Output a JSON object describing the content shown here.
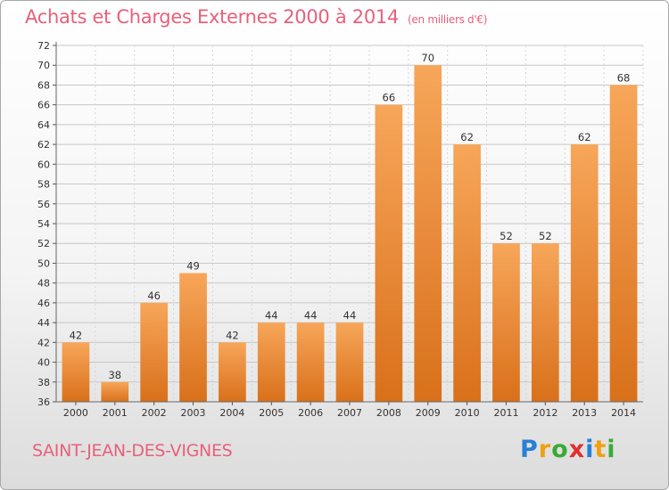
{
  "header": {
    "title": "Achats et Charges Externes 2000 à 2014",
    "unit": "(en milliers d'€)"
  },
  "footer": {
    "commune": "SAINT-JEAN-DES-VIGNES"
  },
  "logo": {
    "letters": [
      {
        "ch": "P",
        "color": "#2a7fd4"
      },
      {
        "ch": "r",
        "color": "#f0a010"
      },
      {
        "ch": "o",
        "color": "#3aaa35"
      },
      {
        "ch": "x",
        "color": "#e03030"
      },
      {
        "ch": "i",
        "color": "#2a7fd4"
      },
      {
        "ch": "t",
        "color": "#f0a010"
      },
      {
        "ch": "i",
        "color": "#3aaa35"
      }
    ]
  },
  "chart_data": {
    "type": "bar",
    "categories": [
      "2000",
      "2001",
      "2002",
      "2003",
      "2004",
      "2005",
      "2006",
      "2007",
      "2008",
      "2009",
      "2010",
      "2011",
      "2012",
      "2013",
      "2014"
    ],
    "values": [
      42,
      38,
      46,
      49,
      42,
      44,
      44,
      44,
      66,
      70,
      62,
      52,
      52,
      62,
      68
    ],
    "title": "Achats et Charges Externes 2000 à 2014",
    "ylim": [
      36,
      72
    ],
    "ytick_step": 2,
    "grid": true,
    "bar_color": "#f08c2a"
  }
}
